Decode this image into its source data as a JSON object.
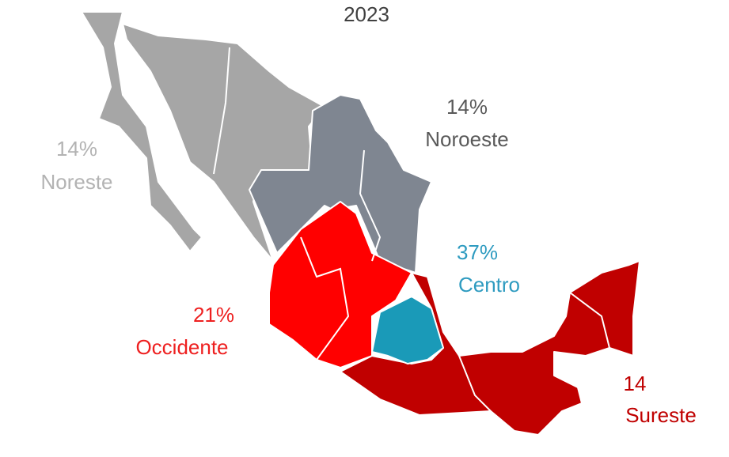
{
  "title": "2023",
  "regions": [
    {
      "value_label": "14%",
      "name": "Noreste"
    },
    {
      "value_label": "14%",
      "name": "Noroeste"
    },
    {
      "value_label": "37%",
      "name": "Centro"
    },
    {
      "value_label": "21%",
      "name": "Occidente"
    },
    {
      "value_label": "14",
      "name": "Sureste"
    }
  ]
}
